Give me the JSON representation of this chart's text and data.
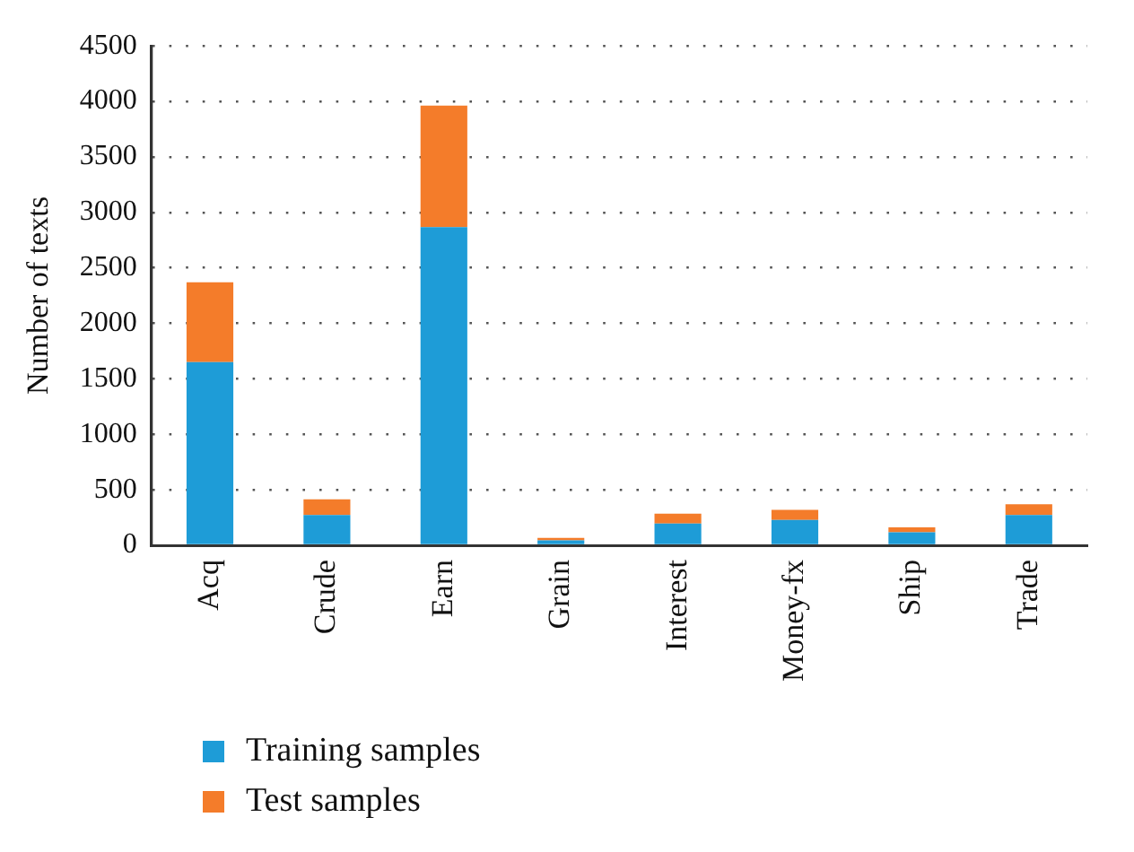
{
  "chart_data": {
    "type": "bar",
    "stacked": true,
    "ylabel": "Number of texts",
    "categories": [
      "Acq",
      "Crude",
      "Earn",
      "Grain",
      "Interest",
      "Money-fx",
      "Ship",
      "Trade"
    ],
    "series": [
      {
        "name": "Training samples",
        "color": "#1e9cd7",
        "values": [
          1650,
          274,
          2868,
          45,
          196,
          229,
          117,
          274
        ]
      },
      {
        "name": "Test samples",
        "color": "#f47c2a",
        "values": [
          720,
          140,
          1095,
          22,
          89,
          90,
          45,
          95
        ]
      }
    ],
    "ylim": [
      0,
      4500
    ],
    "yticks": [
      0,
      500,
      1000,
      1500,
      2000,
      2500,
      3000,
      3500,
      4000,
      4500
    ],
    "grid": "y",
    "legend": "bottom left"
  }
}
